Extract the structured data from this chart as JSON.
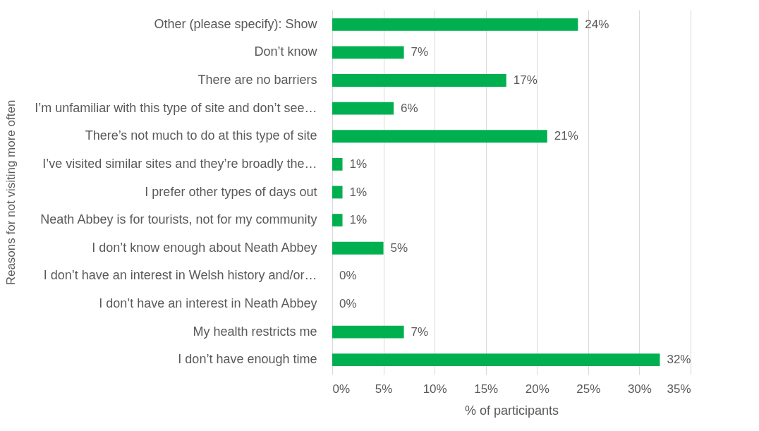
{
  "chart_data": {
    "type": "bar",
    "orientation": "horizontal",
    "xlabel": "% of participants",
    "ylabel": "Reasons for not visiting more often",
    "categories": [
      "Other (please specify): Show",
      "Don’t know",
      "There are no barriers",
      "I’m unfamiliar with this type of site and don’t see…",
      "There’s not much to do at this type of site",
      "I’ve visited similar sites and they’re broadly the…",
      "I prefer other types of days out",
      "Neath Abbey is for tourists, not for my community",
      "I don’t know enough about Neath Abbey",
      "I don’t have an interest in Welsh history and/or…",
      "I don’t have an interest in Neath Abbey",
      "My health restricts me",
      "I don’t have enough time"
    ],
    "values": [
      24,
      7,
      17,
      6,
      21,
      1,
      1,
      1,
      5,
      0,
      0,
      7,
      32
    ],
    "value_labels": [
      "24%",
      "7%",
      "17%",
      "6%",
      "21%",
      "1%",
      "1%",
      "1%",
      "5%",
      "0%",
      "0%",
      "7%",
      "32%"
    ],
    "color": "#00b050",
    "xlim": [
      0,
      35
    ],
    "xticks": [
      {
        "value": 0,
        "label": "0%"
      },
      {
        "value": 5,
        "label": "5%"
      },
      {
        "value": 10,
        "label": "10%"
      },
      {
        "value": 15,
        "label": "15%"
      },
      {
        "value": 20,
        "label": "20%"
      },
      {
        "value": 25,
        "label": "25%"
      },
      {
        "value": 30,
        "label": "30%"
      },
      {
        "value": 35,
        "label": "35%"
      }
    ],
    "grid": "x"
  }
}
